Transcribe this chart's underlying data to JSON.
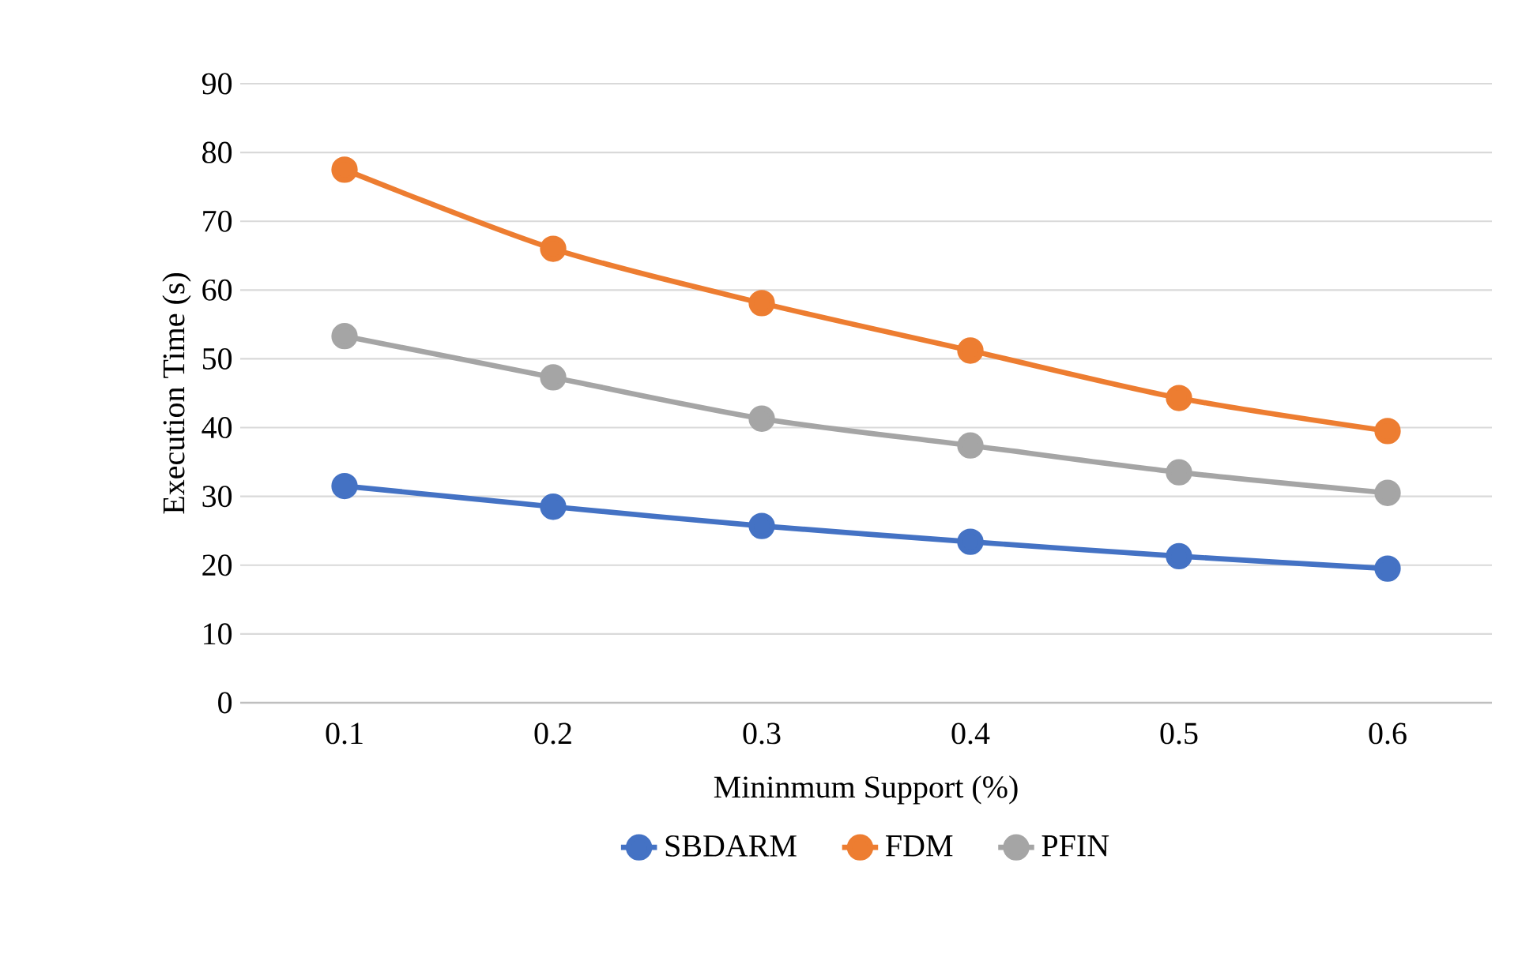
{
  "chart_data": {
    "type": "line",
    "xlabel": "Mininmum Support (%)",
    "ylabel": "Execution Time (s)",
    "categories": [
      "0.1",
      "0.2",
      "0.3",
      "0.4",
      "0.5",
      "0.6"
    ],
    "series": [
      {
        "name": "SBDARM",
        "color": "#4472c4",
        "values": [
          31.5,
          28.5,
          25.7,
          23.4,
          21.3,
          19.5
        ]
      },
      {
        "name": "FDM",
        "color": "#ed7d31",
        "values": [
          77.5,
          66,
          58.1,
          51.2,
          44.3,
          39.5
        ]
      },
      {
        "name": "PFIN",
        "color": "#a5a5a5",
        "values": [
          53.3,
          47.3,
          41.3,
          37.4,
          33.5,
          30.5
        ]
      }
    ],
    "ylim": [
      0,
      90
    ],
    "yticks": [
      0,
      10,
      20,
      30,
      40,
      50,
      60,
      70,
      80,
      90
    ],
    "grid": "y",
    "legend": "bottom",
    "marker": "circle",
    "line_style": "solid"
  }
}
